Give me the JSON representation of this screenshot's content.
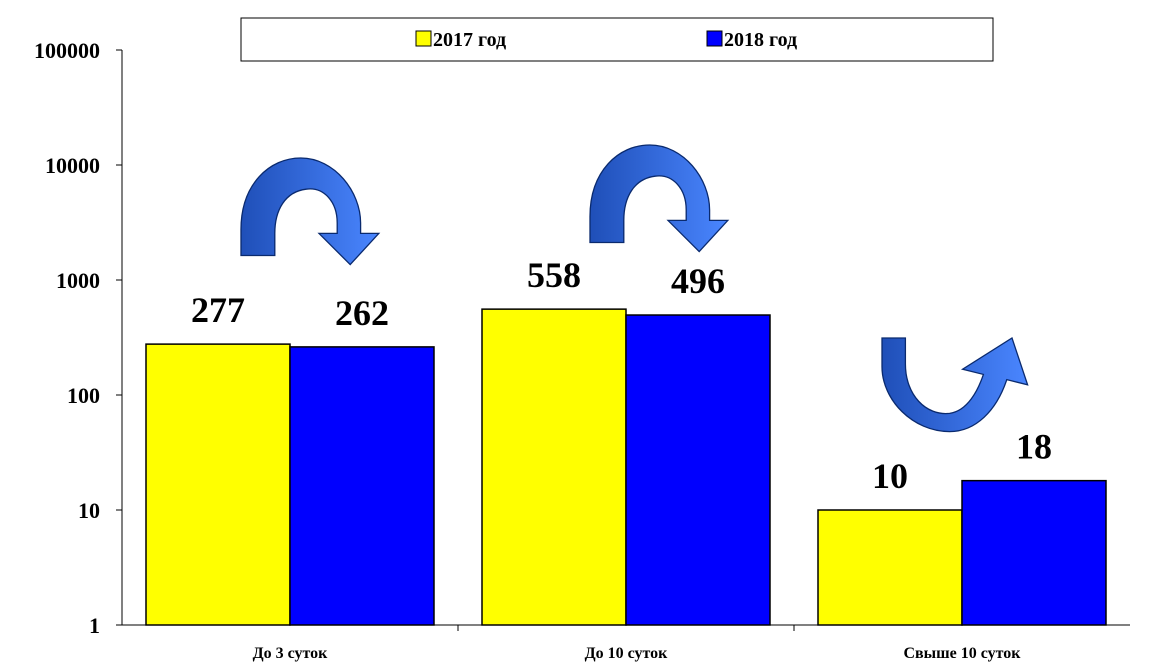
{
  "chart_data": {
    "type": "bar",
    "scale": "log",
    "ylim": [
      1,
      100000
    ],
    "yticks": [
      "1",
      "10",
      "100",
      "1000",
      "10000",
      "100000"
    ],
    "categories": [
      "До 3 суток",
      "До 10 суток",
      "Свыше 10 суток"
    ],
    "series": [
      {
        "name": "2017 год",
        "color": "#ffff00",
        "values": [
          277,
          558,
          10
        ]
      },
      {
        "name": "2018 год",
        "color": "#0000ff",
        "values": [
          262,
          496,
          18
        ]
      }
    ],
    "data_labels": [
      [
        "277",
        "558",
        "10"
      ],
      [
        "262",
        "496",
        "18"
      ]
    ],
    "legend_position": "top",
    "grid": false,
    "trend_arrows": [
      {
        "category": "До 3 суток",
        "direction": "down"
      },
      {
        "category": "До 10 суток",
        "direction": "down"
      },
      {
        "category": "Свыше 10 суток",
        "direction": "up"
      }
    ],
    "arrow_color": "#3366ff"
  }
}
